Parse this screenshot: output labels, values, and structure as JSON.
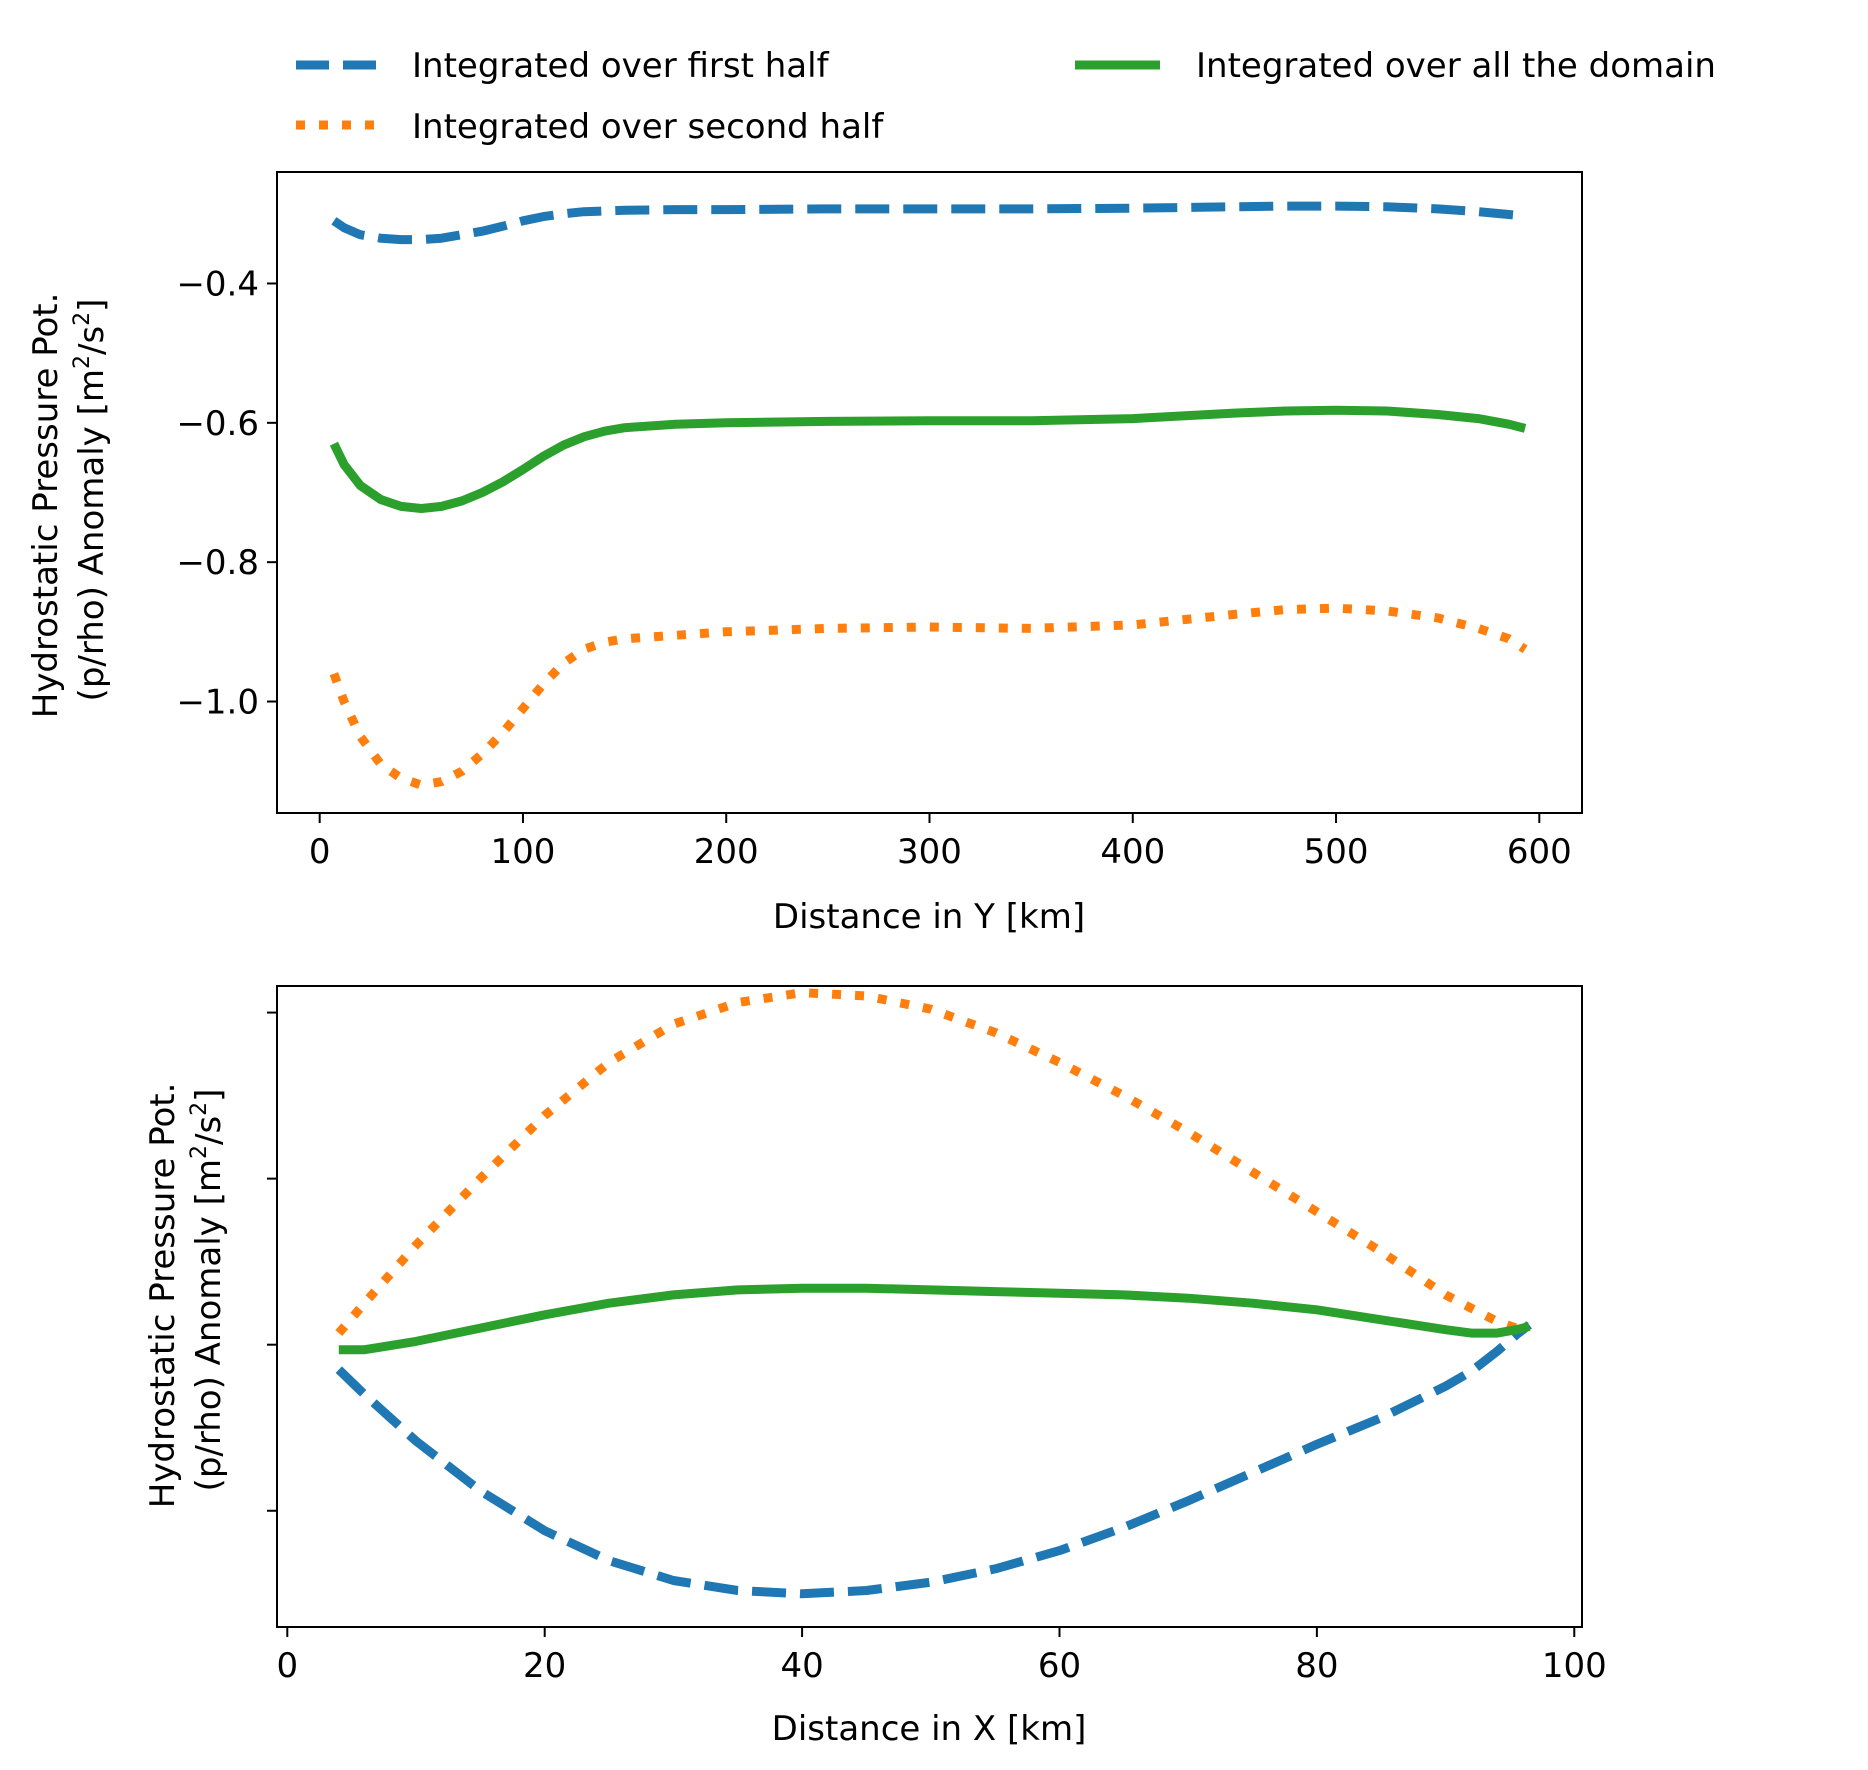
{
  "legend": {
    "items": [
      {
        "label": "Integrated over first half",
        "color": "#1f77b4",
        "style": "dashed"
      },
      {
        "label": "Integrated over second half",
        "color": "#ff7f0e",
        "style": "dotted"
      },
      {
        "label": "Integrated over all the domain",
        "color": "#2ca02c",
        "style": "solid"
      }
    ]
  },
  "chart_data": [
    {
      "type": "line",
      "xlabel": "Distance in Y [km]",
      "ylabel_line1": "Hydrostatic Pressure Pot.",
      "ylabel_line2": "(p/rho) Anomaly [m",
      "ylabel_sup1": "2",
      "ylabel_mid": "/s",
      "ylabel_sup2": "2",
      "ylabel_end": "]",
      "xlim": [
        -21,
        621
      ],
      "ylim": [
        -1.16,
        -0.24
      ],
      "xticks": [
        0,
        100,
        200,
        300,
        400,
        500,
        600
      ],
      "xtick_labels": [
        "0",
        "100",
        "200",
        "300",
        "400",
        "500",
        "600"
      ],
      "yticks": [
        -0.4,
        -0.6,
        -0.8,
        -1.0
      ],
      "ytick_labels": [
        "−0.4",
        "−0.6",
        "−0.8",
        "−1.0"
      ],
      "x": [
        7,
        12,
        20,
        30,
        40,
        50,
        60,
        70,
        80,
        90,
        100,
        110,
        120,
        130,
        140,
        150,
        175,
        200,
        250,
        300,
        350,
        400,
        450,
        475,
        500,
        525,
        550,
        570,
        585,
        593
      ],
      "series": [
        {
          "name": "Integrated over first half",
          "values": [
            -0.31,
            -0.32,
            -0.33,
            -0.335,
            -0.337,
            -0.337,
            -0.335,
            -0.33,
            -0.325,
            -0.318,
            -0.31,
            -0.304,
            -0.3,
            -0.297,
            -0.296,
            -0.295,
            -0.294,
            -0.294,
            -0.293,
            -0.293,
            -0.293,
            -0.292,
            -0.29,
            -0.289,
            -0.289,
            -0.29,
            -0.293,
            -0.297,
            -0.301,
            -0.303
          ]
        },
        {
          "name": "Integrated over second half",
          "values": [
            -0.96,
            -1.0,
            -1.05,
            -1.09,
            -1.11,
            -1.12,
            -1.115,
            -1.1,
            -1.075,
            -1.045,
            -1.01,
            -0.975,
            -0.945,
            -0.925,
            -0.915,
            -0.91,
            -0.905,
            -0.9,
            -0.895,
            -0.893,
            -0.895,
            -0.89,
            -0.875,
            -0.868,
            -0.866,
            -0.87,
            -0.88,
            -0.895,
            -0.91,
            -0.925
          ]
        },
        {
          "name": "Integrated over all the domain",
          "values": [
            -0.63,
            -0.66,
            -0.69,
            -0.71,
            -0.72,
            -0.723,
            -0.72,
            -0.712,
            -0.7,
            -0.685,
            -0.667,
            -0.648,
            -0.632,
            -0.62,
            -0.612,
            -0.607,
            -0.602,
            -0.6,
            -0.598,
            -0.597,
            -0.597,
            -0.594,
            -0.586,
            -0.583,
            -0.582,
            -0.583,
            -0.588,
            -0.594,
            -0.602,
            -0.608
          ]
        }
      ]
    },
    {
      "type": "line",
      "xlabel": "Distance in X [km]",
      "ylabel_line1": "Hydrostatic Pressure Pot.",
      "ylabel_line2": "(p/rho) Anomaly [m",
      "ylabel_sup1": "2",
      "ylabel_mid": "/s",
      "ylabel_sup2": "2",
      "ylabel_end": "]",
      "xlim": [
        -0.8,
        100.6
      ],
      "ylim": [
        -1.7,
        2.16
      ],
      "xticks": [
        0,
        20,
        40,
        60,
        80,
        100
      ],
      "xtick_labels": [
        "0",
        "20",
        "40",
        "60",
        "80",
        "100"
      ],
      "yticks": [
        2,
        1,
        0,
        -1
      ],
      "ytick_labels": [
        "",
        "",
        "",
        ""
      ],
      "x": [
        4,
        6,
        10,
        15,
        20,
        25,
        30,
        35,
        40,
        45,
        50,
        55,
        60,
        65,
        70,
        75,
        80,
        85,
        90,
        92,
        94,
        95.5,
        96.5
      ],
      "series": [
        {
          "name": "Integrated over first half",
          "values": [
            -0.15,
            -0.3,
            -0.58,
            -0.88,
            -1.12,
            -1.3,
            -1.42,
            -1.48,
            -1.5,
            -1.48,
            -1.43,
            -1.35,
            -1.24,
            -1.1,
            -0.94,
            -0.77,
            -0.6,
            -0.44,
            -0.25,
            -0.16,
            -0.04,
            0.06,
            0.12
          ]
        },
        {
          "name": "Integrated over second half",
          "values": [
            0.07,
            0.25,
            0.6,
            1.0,
            1.38,
            1.7,
            1.93,
            2.06,
            2.12,
            2.1,
            2.02,
            1.88,
            1.7,
            1.5,
            1.28,
            1.04,
            0.8,
            0.56,
            0.3,
            0.22,
            0.14,
            0.1,
            0.08
          ]
        },
        {
          "name": "Integrated over all the domain",
          "values": [
            -0.03,
            -0.03,
            0.02,
            0.1,
            0.18,
            0.25,
            0.3,
            0.33,
            0.34,
            0.34,
            0.33,
            0.32,
            0.31,
            0.3,
            0.28,
            0.25,
            0.21,
            0.15,
            0.09,
            0.07,
            0.07,
            0.09,
            0.11
          ]
        }
      ]
    }
  ]
}
